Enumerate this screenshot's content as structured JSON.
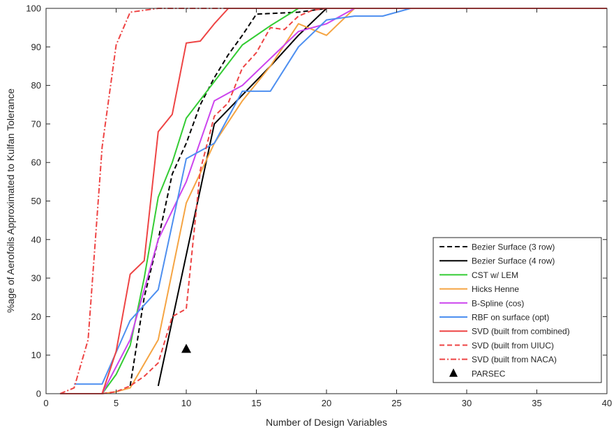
{
  "chart_data": {
    "type": "line",
    "xlabel": "Number of Design Variables",
    "ylabel": "%age of Aerofoils Approximated to Kulfan Tolerance",
    "xlim": [
      0,
      40
    ],
    "ylim": [
      0,
      100
    ],
    "xticks": [
      0,
      5,
      10,
      15,
      20,
      25,
      30,
      35,
      40
    ],
    "yticks": [
      0,
      10,
      20,
      30,
      40,
      50,
      60,
      70,
      80,
      90,
      100
    ],
    "grid": false,
    "legend_position": "bottom-right",
    "series": [
      {
        "name": "Bezier Surface (3 row)",
        "color": "#000000",
        "dash": "dashed",
        "marker": "none",
        "x": [
          6,
          7,
          8,
          9,
          10,
          11,
          12,
          13,
          14,
          15,
          18,
          20,
          40
        ],
        "y": [
          2,
          25,
          40,
          57,
          65,
          75,
          82,
          88,
          93,
          98.5,
          99,
          100,
          100
        ]
      },
      {
        "name": "Bezier Surface (4 row)",
        "color": "#000000",
        "dash": "solid",
        "marker": "none",
        "x": [
          8,
          12,
          16,
          18,
          20,
          40
        ],
        "y": [
          2,
          70,
          85,
          93,
          100,
          100
        ]
      },
      {
        "name": "CST w/ LEM",
        "color": "#33cc33",
        "dash": "solid",
        "marker": "none",
        "x": [
          4,
          5,
          6,
          7,
          8,
          9,
          10,
          12,
          14,
          16,
          18,
          40
        ],
        "y": [
          0,
          5,
          12.5,
          30,
          51,
          60,
          71.5,
          81,
          90.5,
          95.5,
          100,
          100
        ]
      },
      {
        "name": "Hicks Henne",
        "color": "#f5a442",
        "dash": "solid",
        "marker": "none",
        "x": [
          4,
          5,
          6,
          8,
          10,
          12,
          14,
          16,
          18,
          20,
          22,
          40
        ],
        "y": [
          0,
          0.5,
          1.5,
          14,
          49.5,
          65,
          76,
          85,
          96,
          93,
          100,
          100
        ]
      },
      {
        "name": "B-Spline (cos)",
        "color": "#cc44ee",
        "dash": "solid",
        "marker": "none",
        "x": [
          4,
          6,
          8,
          10,
          12,
          14,
          16,
          18,
          20,
          22,
          40
        ],
        "y": [
          0,
          14,
          40,
          55,
          76,
          80,
          87,
          94,
          96,
          100,
          100
        ]
      },
      {
        "name": "RBF on surface (opt)",
        "color": "#4d8ff0",
        "dash": "solid",
        "marker": "none",
        "x": [
          2,
          4,
          6,
          8,
          10,
          12,
          14,
          16,
          18,
          20,
          22,
          24,
          26,
          40
        ],
        "y": [
          2.5,
          2.5,
          19,
          27,
          61,
          65,
          78.5,
          78.5,
          90,
          97,
          98,
          98,
          100,
          100
        ]
      },
      {
        "name": "SVD (built from combined)",
        "color": "#ee4444",
        "dash": "solid",
        "marker": "none",
        "x": [
          1,
          2,
          4,
          5,
          6,
          7,
          8,
          9,
          10,
          11,
          12,
          13,
          40
        ],
        "y": [
          0,
          0,
          0,
          11,
          31,
          34.5,
          68,
          72.5,
          91,
          91.5,
          96,
          100,
          100
        ]
      },
      {
        "name": "SVD (built from UIUC)",
        "color": "#ee4444",
        "dash": "dashed",
        "marker": "none",
        "x": [
          4,
          5,
          6,
          7,
          8,
          9,
          10,
          11,
          12,
          13,
          14,
          15,
          16,
          17,
          18,
          19,
          20,
          40
        ],
        "y": [
          0,
          0.5,
          2,
          4.5,
          8,
          20,
          22,
          58,
          72,
          75.5,
          84.5,
          88.5,
          95,
          94.5,
          98,
          99.5,
          100,
          100
        ]
      },
      {
        "name": "SVD (built from NACA)",
        "color": "#ee4444",
        "dash": "dashdot",
        "marker": "none",
        "x": [
          1,
          2,
          3,
          4,
          5,
          6,
          8,
          10,
          40
        ],
        "y": [
          0,
          1.5,
          14,
          64,
          90.5,
          99,
          100,
          100,
          100
        ]
      },
      {
        "name": "PARSEC",
        "color": "#000000",
        "dash": "none",
        "marker": "triangle",
        "x": [
          10
        ],
        "y": [
          11.5
        ]
      }
    ]
  }
}
